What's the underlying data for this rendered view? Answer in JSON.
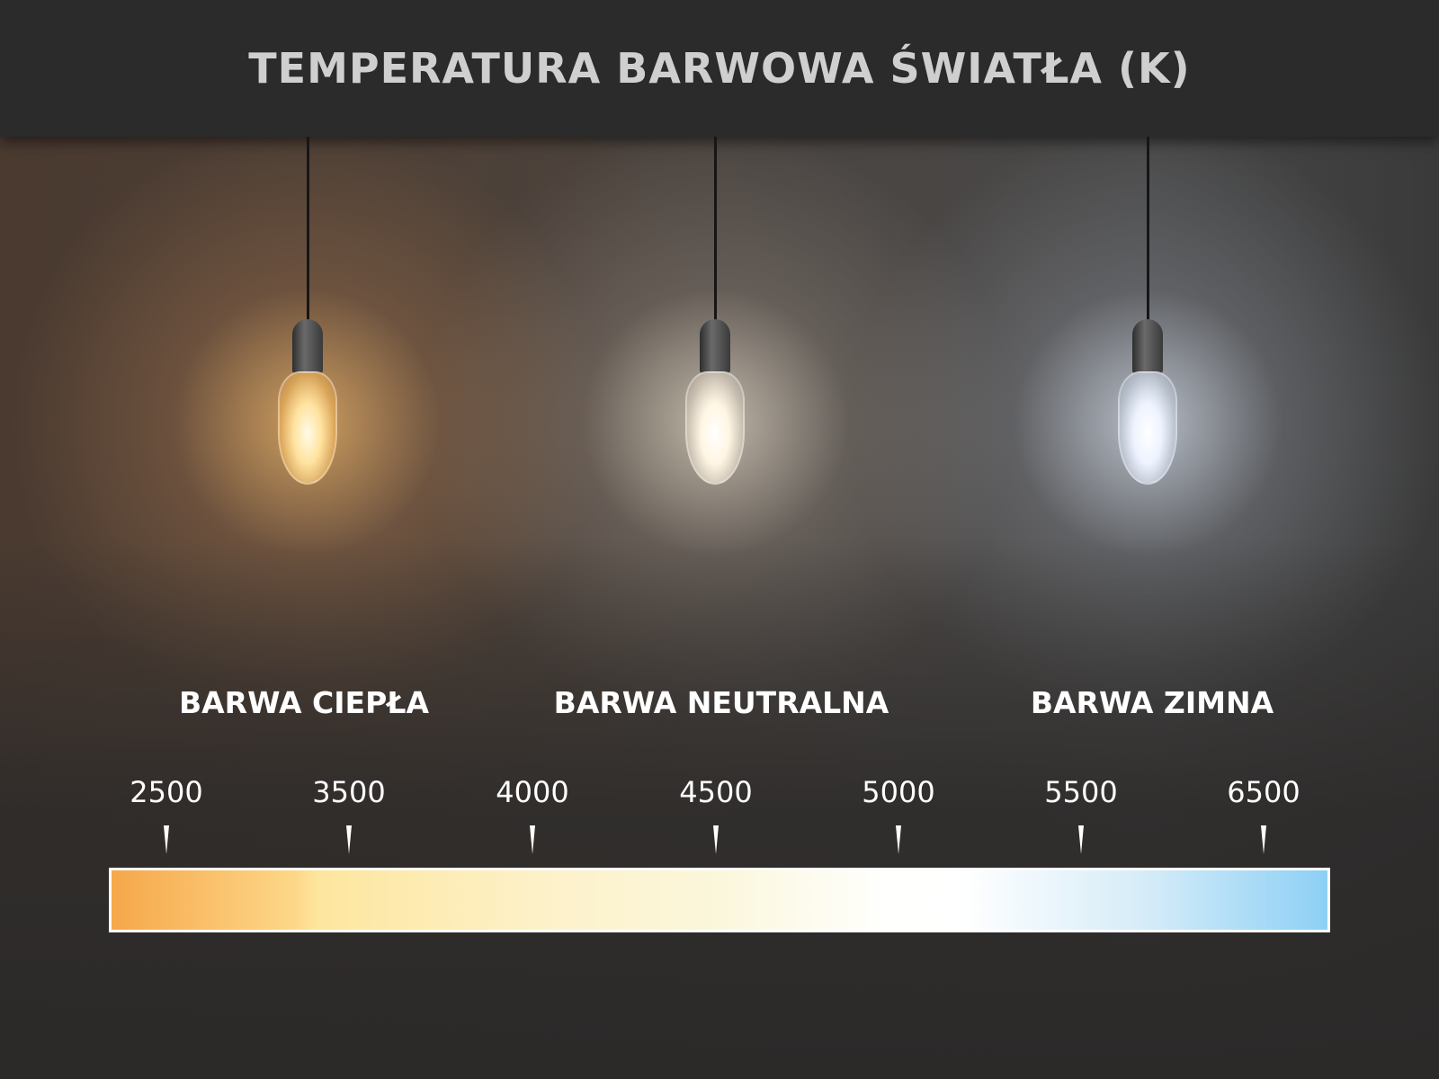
{
  "title": "TEMPERATURA BARWOWA ŚWIATŁA (K)",
  "bulbs": [
    {
      "name": "warm",
      "color": "#ffd28a"
    },
    {
      "name": "neutral",
      "color": "#fff6e6"
    },
    {
      "name": "cold",
      "color": "#eef4ff"
    }
  ],
  "labels": [
    "BARWA CIEPŁA",
    "BARWA NEUTRALNA",
    "BARWA ZIMNA"
  ],
  "scale": {
    "ticks": [
      "2500",
      "3500",
      "4000",
      "4500",
      "5000",
      "5500",
      "6500"
    ],
    "gradient_colors": [
      "#f6a74a",
      "#fde69e",
      "#fbf7dc",
      "#ffffff",
      "#8dd0f5"
    ]
  }
}
